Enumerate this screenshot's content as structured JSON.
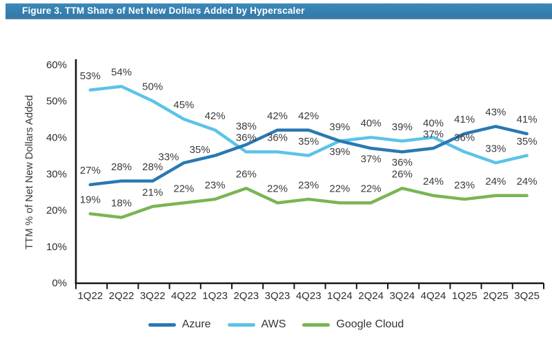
{
  "figure": {
    "title": "Figure 3. TTM Share of Net New Dollars Added by Hyperscaler"
  },
  "chart_data": {
    "type": "line",
    "title": "",
    "xlabel": "",
    "ylabel": "TTM % of Net New Dollars Added",
    "ylim": [
      0,
      60
    ],
    "ytick_step": 10,
    "yticks": [
      "0%",
      "10%",
      "20%",
      "30%",
      "40%",
      "50%",
      "60%"
    ],
    "grid": false,
    "data_labels": true,
    "legend_position": "bottom",
    "categories": [
      "1Q22",
      "2Q22",
      "3Q22",
      "4Q22",
      "1Q23",
      "2Q23",
      "3Q23",
      "4Q23",
      "1Q24",
      "2Q24",
      "3Q24",
      "4Q24",
      "1Q25",
      "2Q25",
      "3Q25"
    ],
    "series": [
      {
        "name": "Azure",
        "color": "#2A78B2",
        "values": [
          27,
          28,
          28,
          33,
          35,
          38,
          42,
          42,
          39,
          37,
          36,
          37,
          41,
          43,
          41
        ]
      },
      {
        "name": "AWS",
        "color": "#5BC3E9",
        "values": [
          53,
          54,
          50,
          45,
          42,
          36,
          36,
          35,
          39,
          40,
          39,
          40,
          36,
          33,
          35
        ]
      },
      {
        "name": "Google Cloud",
        "color": "#7AB553",
        "values": [
          19,
          18,
          21,
          22,
          23,
          26,
          22,
          23,
          22,
          22,
          26,
          24,
          23,
          24,
          24
        ]
      }
    ]
  },
  "colors": {
    "header_bg": "#3583B5",
    "header_text": "#FFFFFF",
    "axis": "#161616",
    "label_text": "#3A3A3A"
  }
}
